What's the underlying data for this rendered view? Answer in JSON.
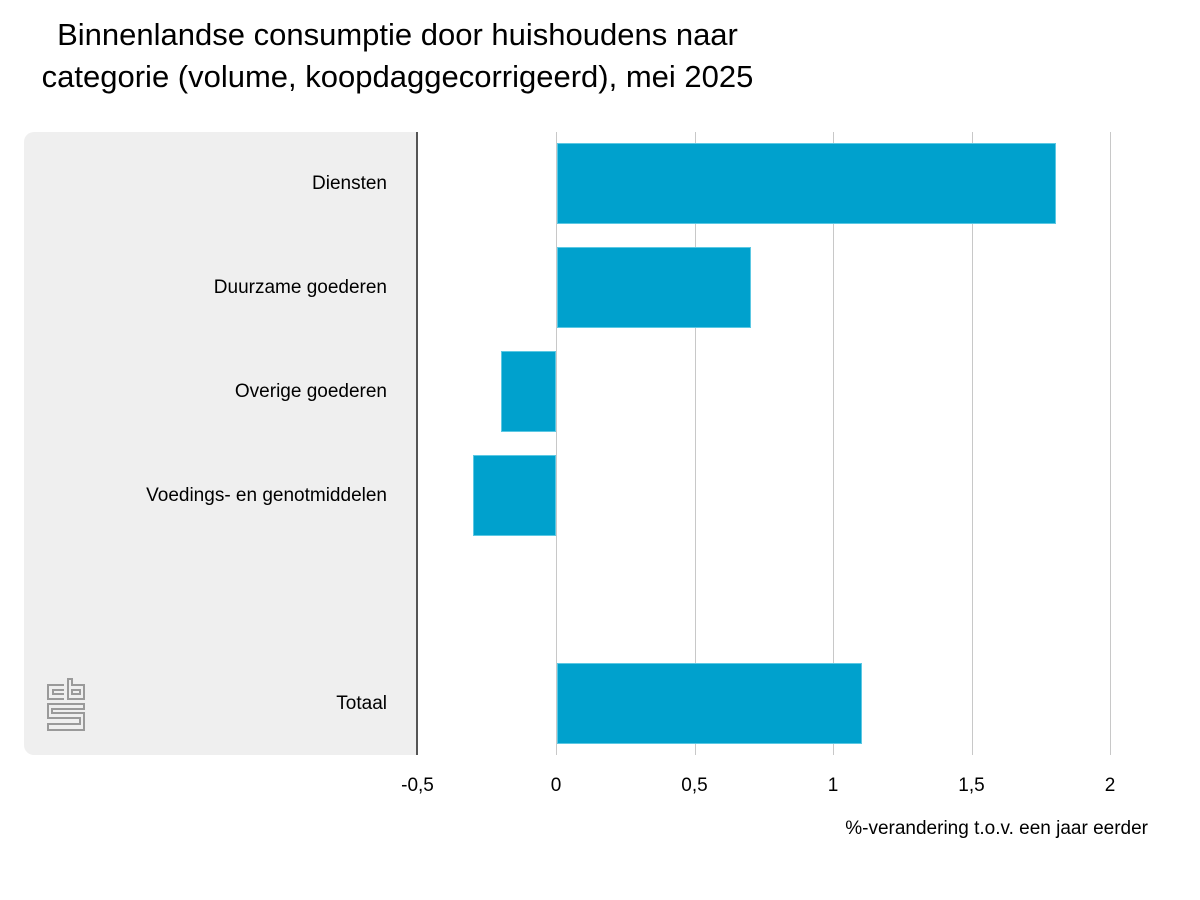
{
  "chart_data": {
    "type": "bar",
    "orientation": "horizontal",
    "title": "Binnenlandse consumptie door huishoudens naar categorie (volume, koopdaggecorrigeerd), mei 2025",
    "title_lines": [
      "Binnenlandse consumptie door huishoudens naar",
      "categorie (volume, koopdaggecorrigeerd), mei 2025"
    ],
    "categories": [
      "Diensten",
      "Duurzame goederen",
      "Overige goederen",
      "Voedings- en genotmiddelen",
      "Totaal"
    ],
    "values": [
      1.8,
      0.7,
      -0.2,
      -0.3,
      1.1
    ],
    "xlabel": "%-verandering t.o.v. een jaar eerder",
    "ylabel": "",
    "xlim": [
      -0.5,
      2
    ],
    "x_ticks": [
      -0.5,
      0,
      0.5,
      1,
      1.5,
      2
    ],
    "x_tick_labels": [
      "-0,5",
      "0",
      "0,5",
      "1",
      "1,5",
      "2"
    ],
    "grid": true,
    "legend": null,
    "bar_color": "#00a1cd"
  },
  "colors": {
    "bar": "#00a1cd",
    "bar_border": "#5cc8e3",
    "panel": "#efefef",
    "grid": "#c8c8c8",
    "axis": "#555555"
  },
  "logo": {
    "icon": "cbs-logo-icon"
  }
}
